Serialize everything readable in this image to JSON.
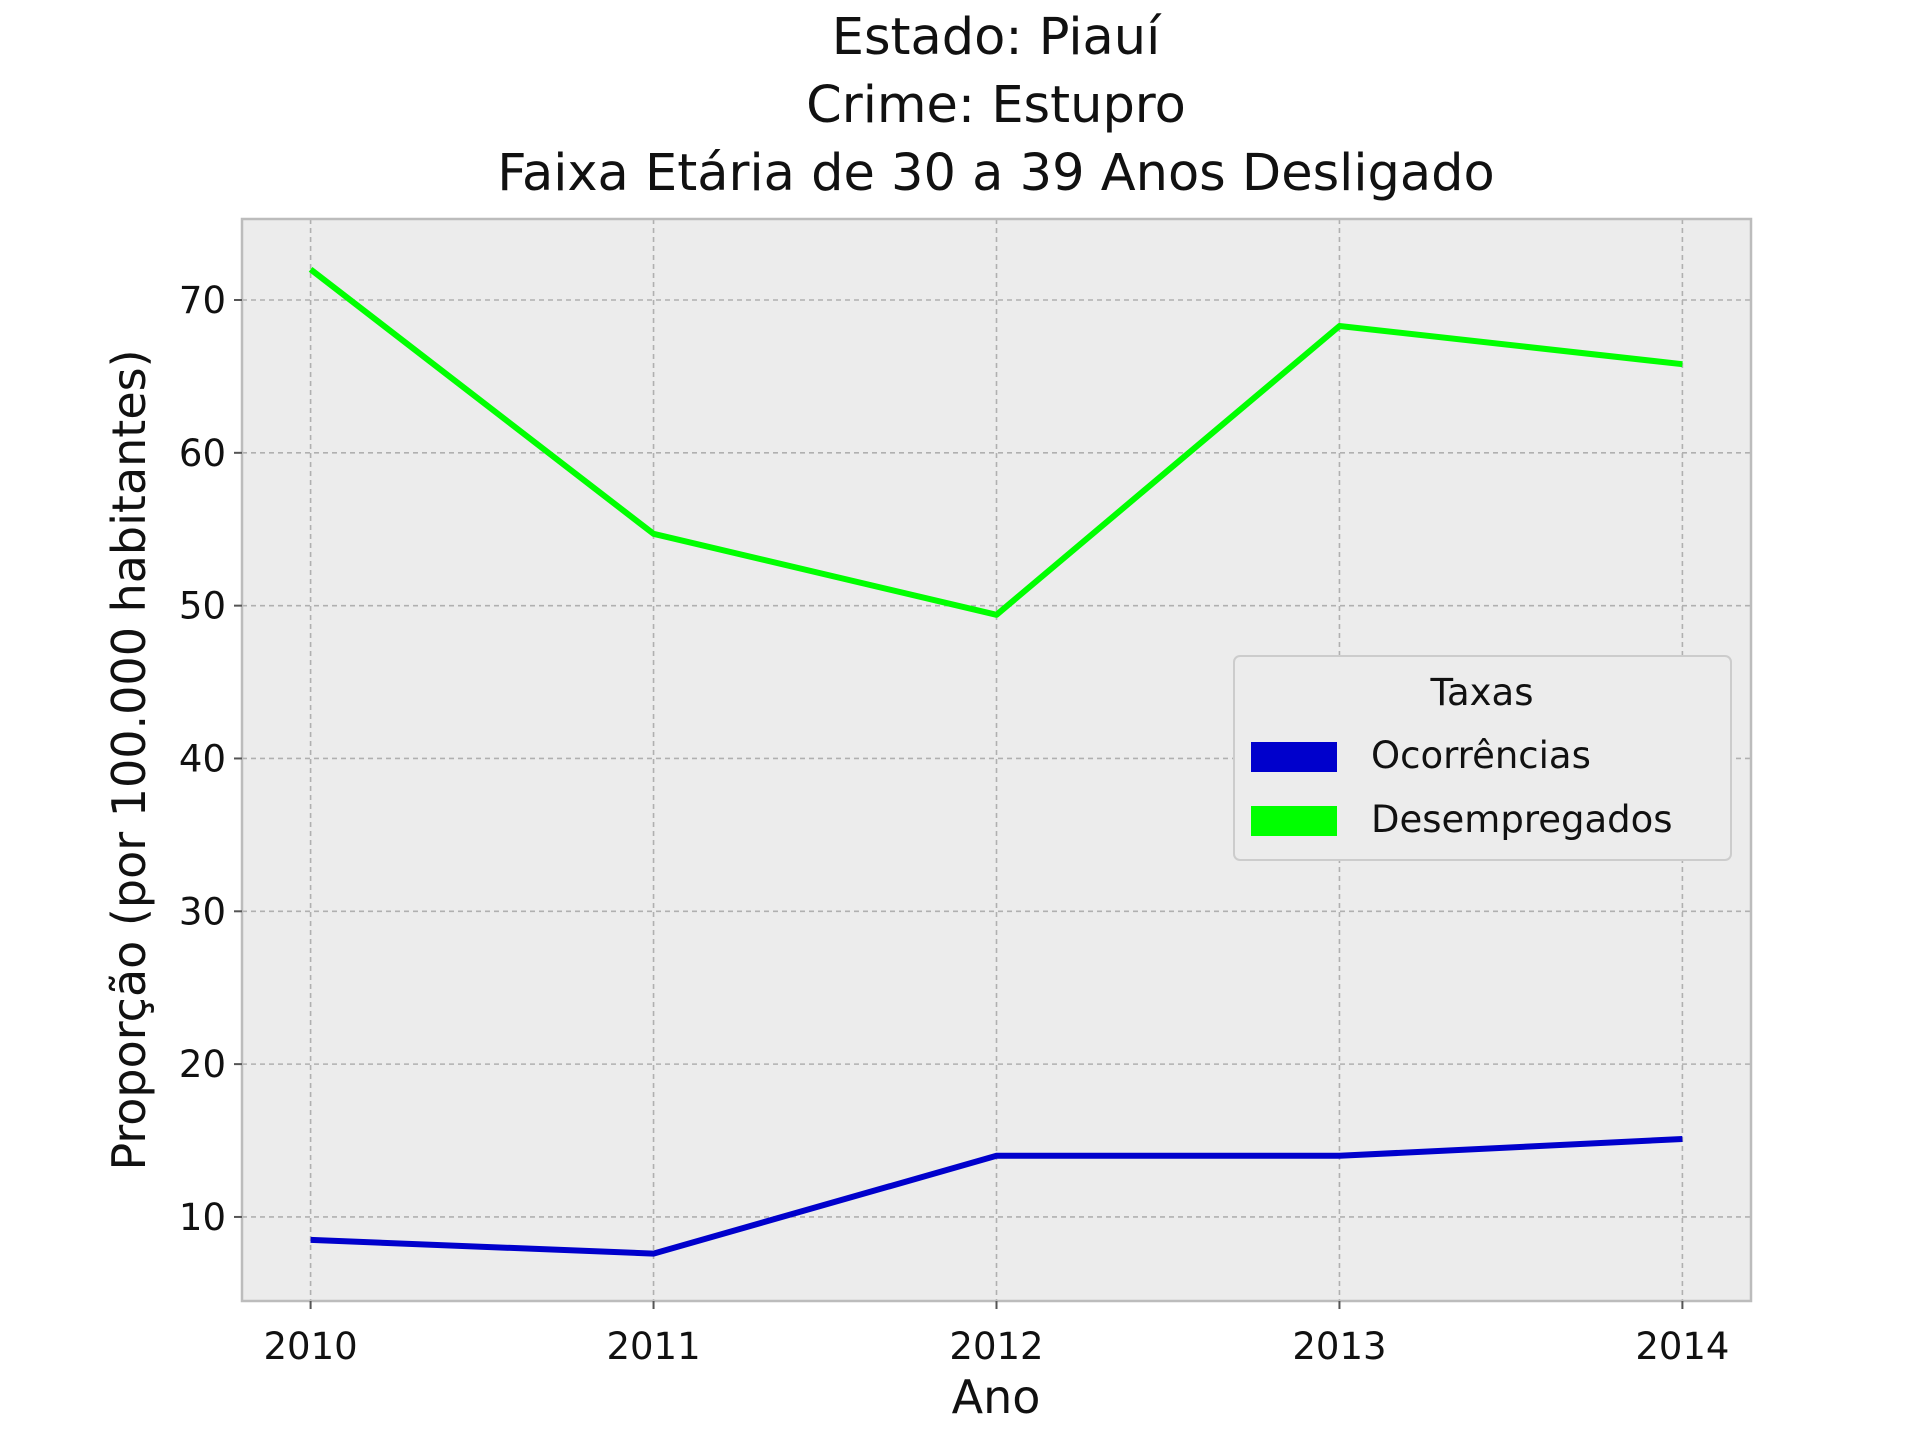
{
  "chart_data": {
    "type": "line",
    "title_lines": [
      "Estado: Piauí",
      "Crime: Estupro",
      "Faixa Etária de 30 a 39 Anos   Desligado"
    ],
    "xlabel": "Ano",
    "ylabel": "Proporção (por 100.000 habitantes)",
    "x": [
      2010,
      2011,
      2012,
      2013,
      2014
    ],
    "x_tick_labels": [
      "2010",
      "2011",
      "2012",
      "2013",
      "2014"
    ],
    "xlim": [
      2009.8,
      2014.2
    ],
    "ylim": [
      4.5,
      75.3
    ],
    "y_ticks": [
      10,
      20,
      30,
      40,
      50,
      60,
      70
    ],
    "y_tick_labels": [
      "10",
      "20",
      "30",
      "40",
      "50",
      "60",
      "70"
    ],
    "grid": true,
    "legend": {
      "title": "Taxas",
      "position": "center-right"
    },
    "series": [
      {
        "name": "Ocorrências",
        "color": "#0000cc",
        "values": [
          8.5,
          7.6,
          14.0,
          14.0,
          15.1
        ]
      },
      {
        "name": "Desempregados",
        "color": "#00ff00",
        "values": [
          72.0,
          54.7,
          49.4,
          68.3,
          65.8
        ]
      }
    ],
    "colors": {
      "plot_background": "#ececec",
      "grid": "#b0b0b0",
      "axes_edge": "#bcbcbc"
    }
  }
}
